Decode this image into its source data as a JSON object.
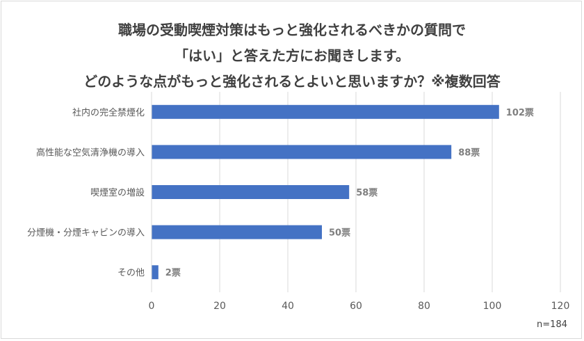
{
  "title_lines": [
    "職場の受動喫煙対策はもっと強化されるべきかの質問で",
    "「はい」と答えた方にお聞きします。",
    "どのような点がもっと強化されるとよいと思いますか？※複数回答"
  ],
  "footnote": "n=184",
  "colors": {
    "bar": "#4472C4",
    "grid": "#d9d9d9",
    "text": "#595959",
    "label": "#7f7f7f"
  },
  "chart_data": {
    "type": "bar",
    "orientation": "horizontal",
    "categories": [
      "社内の完全禁煙化",
      "高性能な空気清浄機の導入",
      "喫煙室の増設",
      "分煙機・分煙キャビンの導入",
      "その他"
    ],
    "values": [
      102,
      88,
      58,
      50,
      2
    ],
    "data_labels": [
      "102票",
      "88票",
      "58票",
      "50票",
      "2票"
    ],
    "xlim": [
      0,
      120
    ],
    "xticks": [
      0,
      20,
      40,
      60,
      80,
      100,
      120
    ],
    "grid": true
  }
}
